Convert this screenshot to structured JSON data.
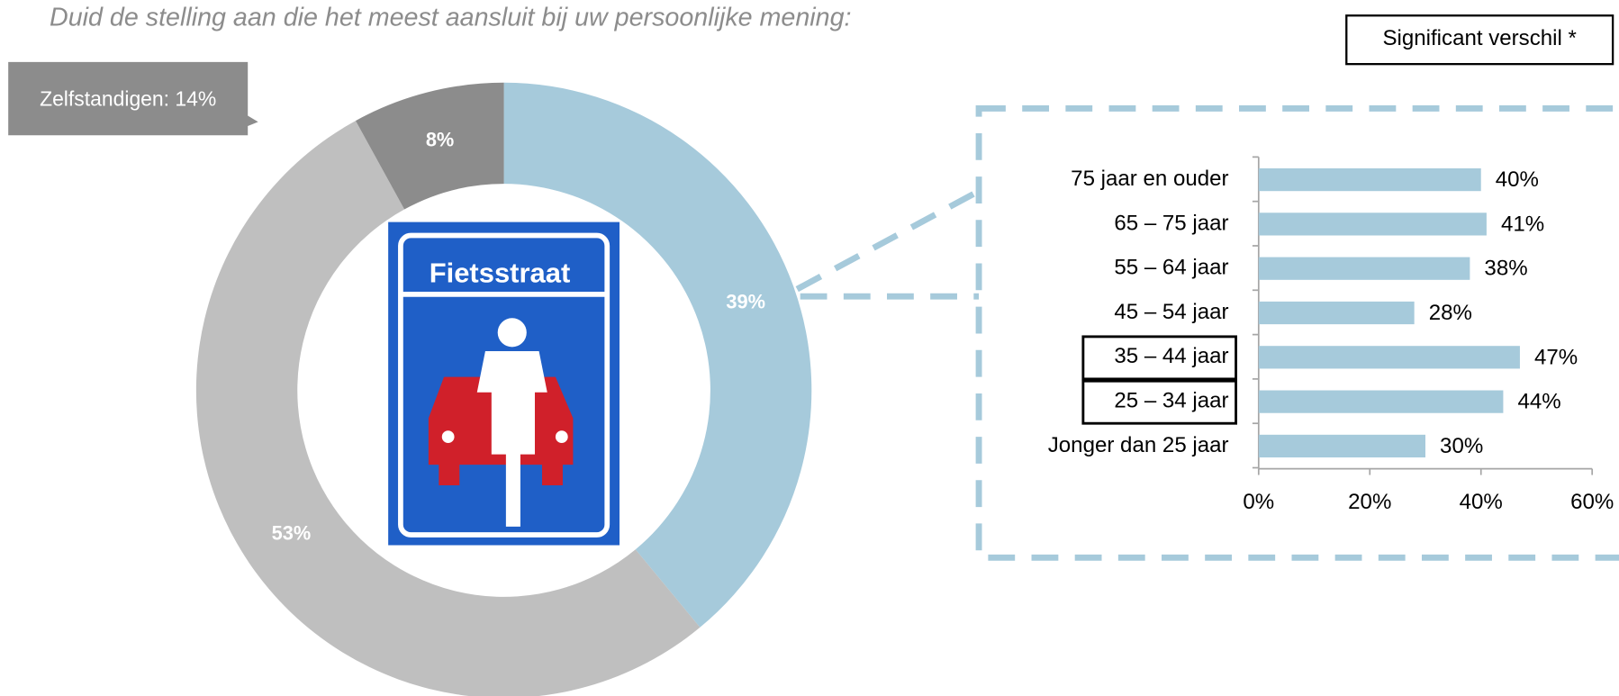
{
  "chart_data": [
    {
      "type": "donut",
      "title": "Duid de stelling aan die het meest aansluit bij uw persoonlijke mening:",
      "annotation": "Zelfstandigen: 14%",
      "categories": [
        null,
        null,
        null
      ],
      "values": [
        39,
        53,
        8
      ],
      "value_labels": [
        "39%",
        "53%",
        "8%"
      ],
      "colors": [
        "#a6cadb",
        "#bfbfbf",
        "#8c8c8c"
      ]
    },
    {
      "type": "hbar",
      "legend": "Significant verschil *",
      "categories": [
        "75 jaar en ouder",
        "65 – 75 jaar",
        "55 – 64 jaar",
        "45 – 54 jaar",
        "35 – 44 jaar",
        "25 – 34 jaar",
        "Jonger dan 25 jaar"
      ],
      "values": [
        40,
        41,
        38,
        28,
        47,
        44,
        30
      ],
      "value_labels": [
        "40%",
        "41%",
        "38%",
        "28%",
        "47%",
        "44%",
        "30%"
      ],
      "highlighted": [
        4,
        5
      ],
      "color": "#a6cadb",
      "xlim": [
        0,
        60
      ],
      "xticks": [
        {
          "value": 0,
          "label": "0%"
        },
        {
          "value": 20,
          "label": "20%"
        },
        {
          "value": 40,
          "label": "40%"
        },
        {
          "value": 60,
          "label": "60%"
        }
      ]
    }
  ],
  "image": {
    "label": "Fietsstraat"
  }
}
